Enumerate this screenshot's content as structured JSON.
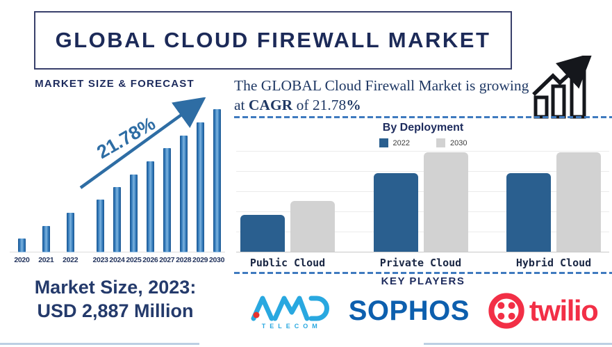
{
  "header": {
    "title": "GLOBAL CLOUD FIREWALL MARKET"
  },
  "left_panel": {
    "section_title": "MARKET SIZE & FORECAST",
    "market_size": {
      "line1": "Market Size, 2023:",
      "line2": "USD 2,887 Million"
    }
  },
  "right_panel": {
    "intro": {
      "text_before": "The GLOBAL Cloud Firewall Market is growing at ",
      "bold_term": "CAGR",
      "text_mid": " of ",
      "value": "21.78",
      "bold_suffix": "%"
    },
    "deployment": {
      "title": "By Deployment"
    },
    "key_players": {
      "title": "KEY PLAYERS",
      "logos": [
        {
          "name": "AMD Telecom",
          "text": "AMD",
          "subtext": "TELECOM",
          "color": "#29a8e0",
          "accent": "#e8322e"
        },
        {
          "name": "Sophos",
          "text": "SOPHOS",
          "color": "#0d5fae"
        },
        {
          "name": "Twilio",
          "text": "twilio",
          "color": "#f22f46"
        }
      ]
    }
  },
  "colors": {
    "navy_text": "#1d2b5d",
    "forecast_bar_blue": "#2e75b6",
    "arrow_blue": "#2e6da4",
    "deployment_blue": "#2a5f8f",
    "deployment_gray": "#d2d2d2",
    "dashed_line_blue": "#3f7abf",
    "footer_line_blue": "#bccfe3"
  },
  "chart_data": [
    {
      "type": "bar",
      "title": "MARKET SIZE & FORECAST",
      "categories": [
        "2020",
        "2021",
        "2022",
        "2023",
        "2024",
        "2025",
        "2026",
        "2027",
        "2028",
        "2029",
        "2030"
      ],
      "values": [
        9.7,
        18.4,
        27.7,
        36.9,
        45.6,
        54.4,
        63.6,
        72.8,
        81.6,
        90.8,
        100
      ],
      "values_unit": "relative bar height, % of 2030 bar (no y-axis shown)",
      "annotation": "21.78%",
      "annotation_meaning": "CAGR growth arrow over 2023-2030",
      "known_points": {
        "market_size_2023_usd_million": 2887
      },
      "bar_color": "#2e75b6",
      "grid": false,
      "xlabel": "",
      "ylabel": ""
    },
    {
      "type": "bar",
      "title": "By Deployment",
      "categories": [
        "Public Cloud",
        "Private Cloud",
        "Hybrid Cloud"
      ],
      "series": [
        {
          "name": "2022",
          "color": "#2a5f8f",
          "values": [
            37,
            79,
            79
          ]
        },
        {
          "name": "2030",
          "color": "#d2d2d2",
          "values": [
            51,
            100,
            100
          ]
        }
      ],
      "values_unit": "relative bar height, % of tallest bar (no y-axis labels shown)",
      "legend_position": "top",
      "grid": true,
      "xlabel": "",
      "ylabel": ""
    }
  ]
}
